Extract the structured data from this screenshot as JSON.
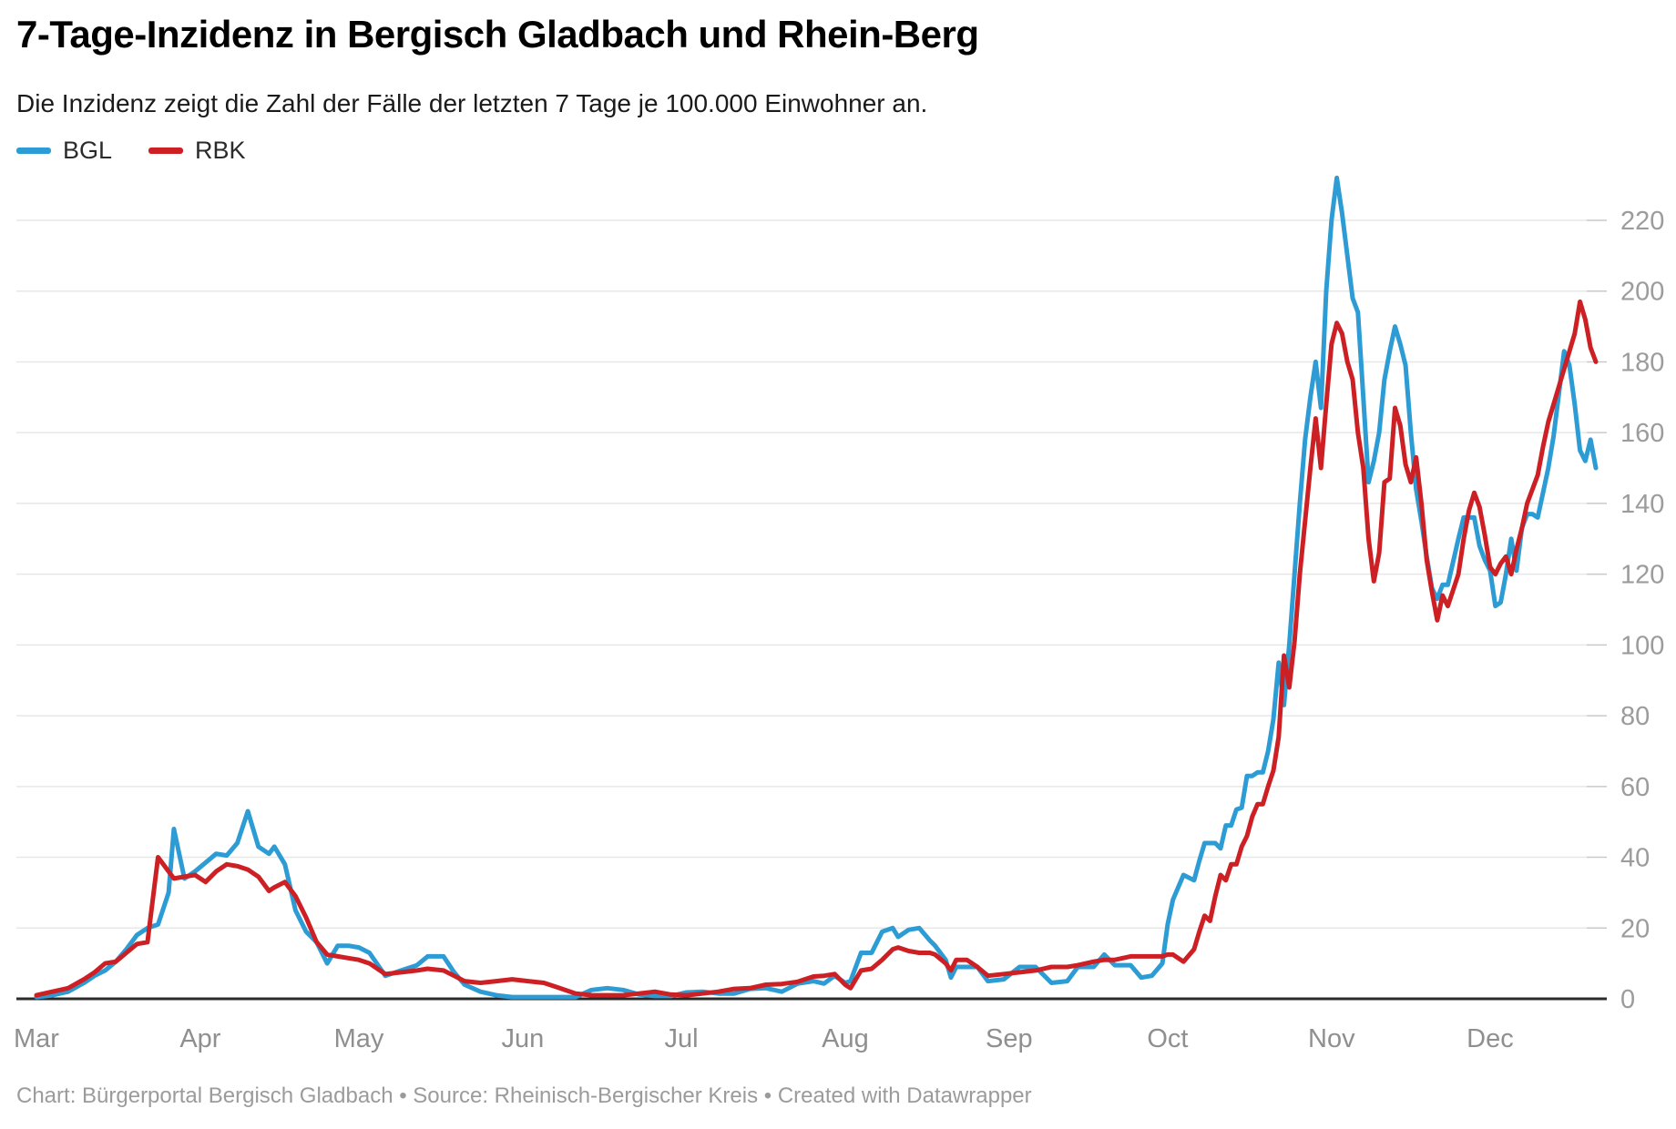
{
  "header": {
    "title": "7-Tage-Inzidenz in Bergisch Gladbach und Rhein-Berg",
    "subtitle": "Die Inzidenz zeigt die Zahl der Fälle der letzten 7 Tage je 100.000 Einwohner an."
  },
  "legend": [
    {
      "label": "BGL",
      "color": "#2d9cd4"
    },
    {
      "label": "RBK",
      "color": "#cc2025"
    }
  ],
  "footer": {
    "text": "Chart: Bürgerportal Bergisch Gladbach • Source: Rheinisch-Bergischer Kreis • Created with Datawrapper"
  },
  "colors": {
    "bgl_line": "#2d9cd4",
    "rbk_line": "#cc2025",
    "gridline": "#e7e7e7",
    "tick": "#c9c9c9",
    "zero_axis": "#2b2b2b",
    "axis_label": "#9c9c9c",
    "month_label": "#8f8f8f"
  },
  "chart_data": {
    "type": "line",
    "title": "7-Tage-Inzidenz in Bergisch Gladbach und Rhein-Berg",
    "subtitle": "Die Inzidenz zeigt die Zahl der Fälle der letzten 7 Tage je 100.000 Einwohner an.",
    "xlabel": "",
    "ylabel": "",
    "ylim": [
      0,
      238
    ],
    "grid": true,
    "legend_position": "top-left",
    "y_axis_side": "right",
    "y_ticks": [
      0,
      20,
      40,
      60,
      80,
      100,
      120,
      140,
      160,
      180,
      200,
      220
    ],
    "x_ticks": [
      "Mar",
      "Apr",
      "May",
      "Jun",
      "Jul",
      "Aug",
      "Sep",
      "Oct",
      "Nov",
      "Dec"
    ],
    "x": [
      "Mar 1",
      "Mar 4",
      "Mar 7",
      "Mar 10",
      "Mar 12",
      "Mar 14",
      "Mar 16",
      "Mar 18",
      "Mar 20",
      "Mar 22",
      "Mar 24",
      "Mar 26",
      "Mar 27",
      "Mar 29",
      "Mar 31",
      "Apr 2",
      "Apr 4",
      "Apr 6",
      "Apr 8",
      "Apr 10",
      "Apr 12",
      "Apr 14",
      "Apr 15",
      "Apr 17",
      "Apr 19",
      "Apr 21",
      "Apr 23",
      "Apr 25",
      "Apr 27",
      "Apr 29",
      "May 1",
      "May 3",
      "May 6",
      "May 9",
      "May 12",
      "May 14",
      "May 17",
      "May 19",
      "May 21",
      "May 24",
      "May 27",
      "May 30",
      "Jun 2",
      "Jun 5",
      "Jun 8",
      "Jun 11",
      "Jun 14",
      "Jun 17",
      "Jun 20",
      "Jun 23",
      "Jun 26",
      "Jun 29",
      "Jul 2",
      "Jul 5",
      "Jul 8",
      "Jul 11",
      "Jul 14",
      "Jul 17",
      "Jul 20",
      "Jul 23",
      "Jul 26",
      "Jul 28",
      "Jul 30",
      "Aug 1",
      "Aug 2",
      "Aug 4",
      "Aug 6",
      "Aug 8",
      "Aug 10",
      "Aug 11",
      "Aug 13",
      "Aug 15",
      "Aug 17",
      "Aug 18",
      "Aug 20",
      "Aug 21",
      "Aug 22",
      "Aug 24",
      "Aug 26",
      "Aug 28",
      "Aug 31",
      "Sep 3",
      "Sep 6",
      "Sep 9",
      "Sep 12",
      "Sep 14",
      "Sep 17",
      "Sep 19",
      "Sep 21",
      "Sep 24",
      "Sep 26",
      "Sep 28",
      "Sep 30",
      "Oct 1",
      "Oct 2",
      "Oct 4",
      "Oct 6",
      "Oct 7",
      "Oct 8",
      "Oct 9",
      "Oct 10",
      "Oct 11",
      "Oct 12",
      "Oct 13",
      "Oct 14",
      "Oct 15",
      "Oct 16",
      "Oct 17",
      "Oct 18",
      "Oct 19",
      "Oct 20",
      "Oct 21",
      "Oct 22",
      "Oct 23",
      "Oct 24",
      "Oct 25",
      "Oct 26",
      "Oct 27",
      "Oct 28",
      "Oct 29",
      "Oct 30",
      "Oct 31",
      "Nov 1",
      "Nov 2",
      "Nov 3",
      "Nov 4",
      "Nov 5",
      "Nov 6",
      "Nov 7",
      "Nov 8",
      "Nov 9",
      "Nov 10",
      "Nov 11",
      "Nov 12",
      "Nov 13",
      "Nov 14",
      "Nov 15",
      "Nov 16",
      "Nov 17",
      "Nov 18",
      "Nov 19",
      "Nov 20",
      "Nov 21",
      "Nov 22",
      "Nov 23",
      "Nov 25",
      "Nov 26",
      "Nov 27",
      "Nov 28",
      "Nov 29",
      "Nov 30",
      "Dec 1",
      "Dec 2",
      "Dec 3",
      "Dec 4",
      "Dec 5",
      "Dec 6",
      "Dec 7",
      "Dec 8",
      "Dec 9",
      "Dec 10",
      "Dec 11",
      "Dec 12",
      "Dec 13",
      "Dec 14",
      "Dec 15",
      "Dec 16",
      "Dec 17",
      "Dec 18",
      "Dec 19",
      "Dec 20",
      "Dec 21"
    ],
    "series": [
      {
        "name": "BGL",
        "color": "#2d9cd4",
        "values": [
          0.5,
          1,
          2,
          4.5,
          6.5,
          8,
          10.5,
          14,
          18,
          20,
          21,
          30,
          48,
          34,
          36,
          38.5,
          41,
          40.5,
          44,
          53,
          43,
          41,
          43,
          38,
          25,
          19,
          16,
          10,
          15,
          15,
          14.5,
          13,
          6.5,
          8,
          9.5,
          12,
          12,
          7.5,
          4,
          2,
          1,
          0.5,
          0.5,
          0.5,
          0.5,
          0.5,
          2.5,
          3,
          2.5,
          1.2,
          0.8,
          0.8,
          1.8,
          2,
          1.5,
          1.5,
          2.8,
          3,
          2,
          4.3,
          5,
          4.3,
          6.5,
          4.5,
          5,
          13,
          13,
          19,
          20,
          17.5,
          19.5,
          20,
          16.5,
          15,
          11,
          6,
          9,
          9,
          9,
          5,
          5.5,
          9,
          9,
          4.5,
          5,
          9,
          9,
          12.5,
          9.5,
          9.5,
          6,
          6.5,
          10,
          21,
          28,
          35,
          33.5,
          39,
          44,
          44,
          44,
          42.5,
          49,
          49,
          53.5,
          54,
          63,
          63,
          64,
          64,
          70,
          79,
          95,
          83,
          100,
          120,
          140,
          158,
          170,
          180,
          167,
          200,
          220,
          232,
          222,
          210,
          198,
          194,
          170,
          146,
          152,
          160,
          175,
          183,
          190,
          185,
          179,
          160,
          144,
          135,
          125,
          116,
          113,
          117,
          117,
          130,
          136,
          136,
          136,
          128,
          124,
          121,
          111,
          112,
          120,
          130,
          121,
          133,
          137,
          137,
          136,
          143,
          150,
          159,
          171,
          183,
          179,
          168,
          155,
          152,
          158,
          150
        ]
      },
      {
        "name": "RBK",
        "color": "#cc2025",
        "values": [
          1,
          2,
          3,
          5.5,
          7.5,
          10,
          10.5,
          13,
          15.5,
          16,
          40,
          36,
          34,
          34.5,
          35,
          33,
          36,
          38,
          37.5,
          36.5,
          34.5,
          30.5,
          31.5,
          33,
          29,
          23,
          16,
          12.5,
          12,
          11.5,
          11,
          10,
          7,
          7.5,
          8,
          8.5,
          8,
          6.5,
          5,
          4.5,
          5,
          5.5,
          5,
          4.5,
          3,
          1.5,
          1,
          1,
          1,
          1.5,
          2,
          1.2,
          1,
          1.5,
          2,
          2.8,
          3,
          4,
          4.2,
          4.8,
          6.3,
          6.5,
          7,
          4,
          3,
          8,
          8.5,
          11,
          14,
          14.5,
          13.5,
          13,
          13,
          12.5,
          10,
          8,
          11,
          11,
          9,
          6.5,
          7,
          7.5,
          8,
          9,
          9,
          9.5,
          10.5,
          11,
          11,
          12,
          12,
          12,
          12,
          12.5,
          12.5,
          10.5,
          14,
          19,
          23.5,
          22,
          29,
          35,
          33.5,
          38,
          38,
          43,
          46,
          51.5,
          55,
          55,
          60,
          64.5,
          74,
          97,
          88,
          101,
          120,
          135,
          150,
          164,
          150,
          168,
          185,
          191,
          188,
          180,
          175,
          160,
          150,
          130,
          118,
          126,
          146,
          147,
          167,
          162,
          151,
          146,
          153,
          140,
          124,
          115,
          107,
          114,
          111,
          120,
          130,
          138,
          143,
          139,
          131,
          122,
          120,
          123,
          125,
          120,
          127,
          133,
          140,
          144,
          148,
          156,
          163,
          168,
          173,
          178,
          183,
          188,
          197,
          192,
          184,
          180
        ]
      }
    ]
  }
}
